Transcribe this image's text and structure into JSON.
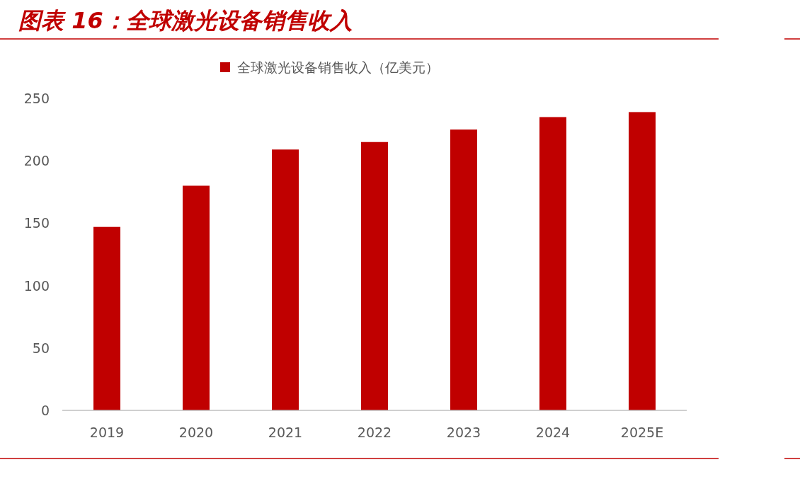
{
  "chart_data": {
    "type": "bar",
    "title": "图表 16：全球激光设备销售收入",
    "categories": [
      "2019",
      "2020",
      "2021",
      "2022",
      "2023",
      "2024",
      "2025E"
    ],
    "series": [
      {
        "name": "全球激光设备销售收入（亿美元）",
        "color": "#c00000",
        "values": [
          147,
          180,
          209,
          215,
          225,
          235,
          239
        ]
      }
    ],
    "ylim": [
      0,
      250
    ],
    "yticks": [
      0,
      50,
      100,
      150,
      200,
      250
    ],
    "grid": false,
    "legend": "top"
  }
}
